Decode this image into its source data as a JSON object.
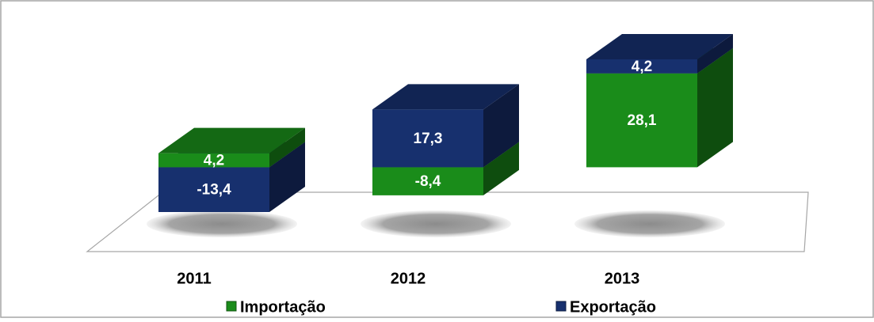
{
  "chart_data": {
    "type": "bar3d_stacked",
    "categories": [
      "2011",
      "2012",
      "2013"
    ],
    "series": [
      {
        "name": "Importação",
        "color": "#1a8c1a",
        "values": [
          4.2,
          -8.4,
          28.1
        ],
        "value_labels": [
          "4,2",
          "-8,4",
          "28,1"
        ]
      },
      {
        "name": "Exportação",
        "color": "#17306e",
        "values": [
          -13.4,
          17.3,
          4.2
        ],
        "value_labels": [
          "-13,4",
          "17,3",
          "4,2"
        ]
      }
    ]
  }
}
